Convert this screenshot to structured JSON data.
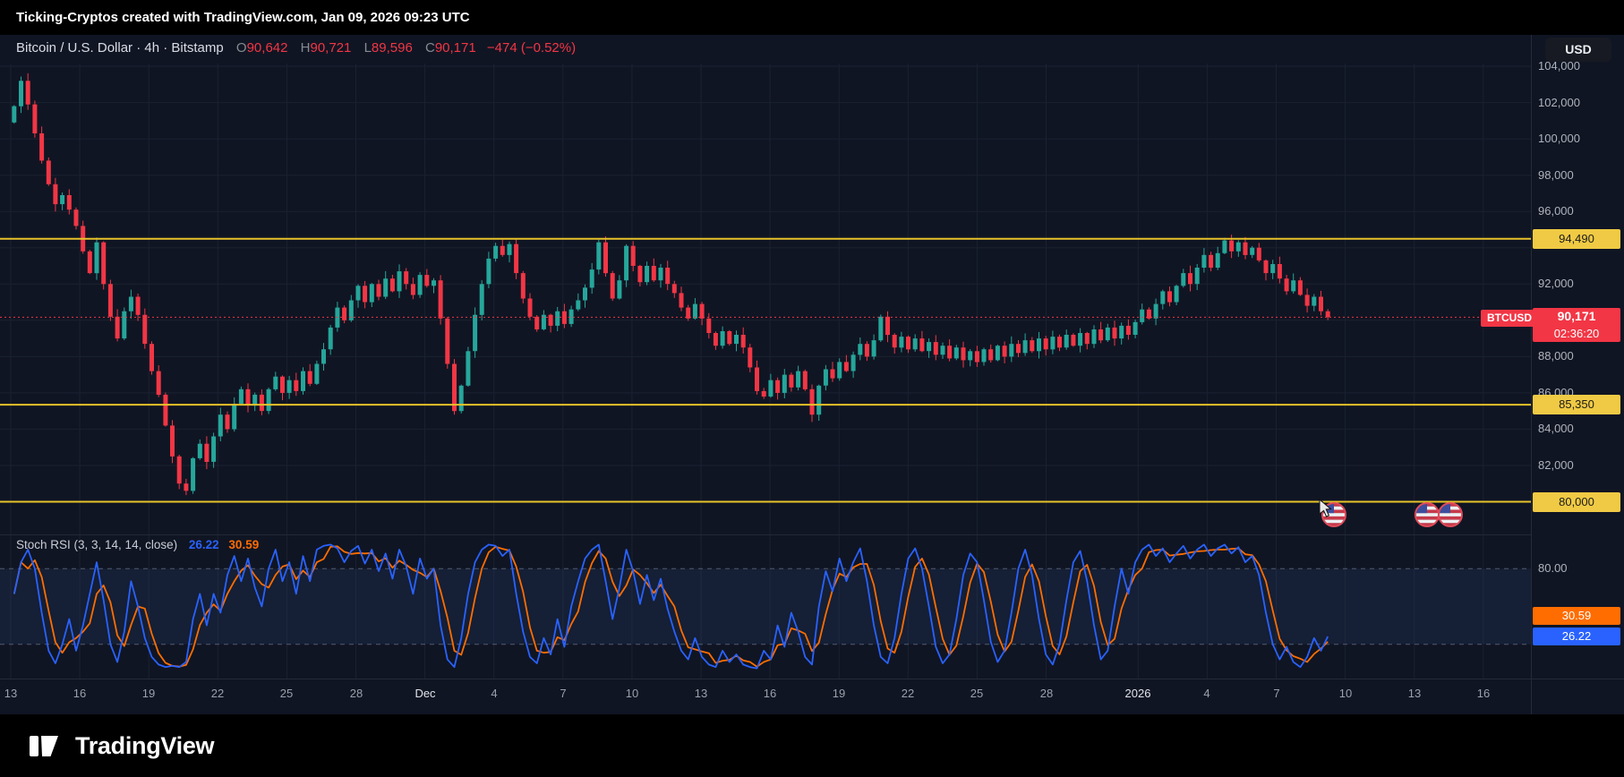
{
  "topbar": {
    "title": "Ticking-Cryptos created with TradingView.com, Jan 09, 2026 09:23 UTC"
  },
  "symbol_header": {
    "title": "Bitcoin / U.S. Dollar · 4h · Bitstamp",
    "o_label": "O",
    "o": "90,642",
    "h_label": "H",
    "h": "90,721",
    "l_label": "L",
    "l": "89,596",
    "c_label": "C",
    "c": "90,171",
    "change": "−474 (−0.52%)"
  },
  "currency_button": "USD",
  "footer": {
    "brand": "TradingView"
  },
  "icons": {
    "logo": "tradingview-logo-icon",
    "flags": "us-flag-event-icon",
    "cursor": "mouse-cursor-icon"
  },
  "colors": {
    "up": "#26a69a",
    "down": "#f23645",
    "grid": "#1a2130",
    "level_yellow": "#e7c229",
    "stoch_k": "#2962ff",
    "stoch_d": "#ff6d00",
    "stoch_band_line": "#687183",
    "stoch_band_fill": "rgba(56,90,160,0.14)"
  },
  "chart_data": [
    {
      "type": "candlestick",
      "symbol": "BTCUSD",
      "title": "Bitcoin / U.S. Dollar",
      "interval": "4h",
      "exchange": "Bitstamp",
      "ohlc_last": {
        "open": 90642,
        "high": 90721,
        "low": 89596,
        "close": 90171,
        "change": -474,
        "change_pct": -0.52
      },
      "last_price": 90171,
      "last_price_label": "90,171",
      "countdown": "02:36:20",
      "ylim": [
        78200,
        104150
      ],
      "y_ticks": [
        80000,
        82000,
        84000,
        86000,
        88000,
        90000,
        92000,
        94000,
        96000,
        98000,
        100000,
        102000,
        104000
      ],
      "levels": [
        {
          "price": 94490,
          "label": "94,490",
          "color": "#e7c229"
        },
        {
          "price": 85350,
          "label": "85,350",
          "color": "#e7c229"
        },
        {
          "price": 80000,
          "label": "80,000",
          "color": "#e7c229"
        }
      ],
      "x_ticks": [
        {
          "label": "13",
          "day": 0,
          "major": false
        },
        {
          "label": "16",
          "day": 3,
          "major": false
        },
        {
          "label": "19",
          "day": 6,
          "major": false
        },
        {
          "label": "22",
          "day": 9,
          "major": false
        },
        {
          "label": "25",
          "day": 12,
          "major": false
        },
        {
          "label": "28",
          "day": 15,
          "major": false
        },
        {
          "label": "Dec",
          "day": 18,
          "major": true
        },
        {
          "label": "4",
          "day": 21,
          "major": false
        },
        {
          "label": "7",
          "day": 24,
          "major": false
        },
        {
          "label": "10",
          "day": 27,
          "major": false
        },
        {
          "label": "13",
          "day": 30,
          "major": false
        },
        {
          "label": "16",
          "day": 33,
          "major": false
        },
        {
          "label": "19",
          "day": 36,
          "major": false
        },
        {
          "label": "22",
          "day": 39,
          "major": false
        },
        {
          "label": "25",
          "day": 42,
          "major": false
        },
        {
          "label": "28",
          "day": 45,
          "major": false
        },
        {
          "label": "2026",
          "day": 49,
          "major": true
        },
        {
          "label": "4",
          "day": 52,
          "major": false
        },
        {
          "label": "7",
          "day": 55,
          "major": false
        },
        {
          "label": "10",
          "day": 58,
          "major": false
        },
        {
          "label": "13",
          "day": 61,
          "major": false
        },
        {
          "label": "16",
          "day": 64,
          "major": false
        }
      ],
      "open_start": 100900,
      "closes": [
        101800,
        103200,
        101900,
        100300,
        98800,
        97500,
        96400,
        96900,
        96100,
        95200,
        93800,
        92600,
        94300,
        92000,
        90200,
        89000,
        90500,
        91300,
        90300,
        88700,
        87200,
        85900,
        84200,
        82500,
        81000,
        80600,
        82400,
        83200,
        82200,
        83600,
        84800,
        84000,
        85400,
        86200,
        85300,
        85900,
        85000,
        86200,
        86900,
        86000,
        86700,
        86100,
        87200,
        86500,
        87600,
        88400,
        89600,
        90700,
        90000,
        91100,
        91900,
        91000,
        92000,
        91300,
        92300,
        91600,
        92700,
        92000,
        91400,
        92500,
        91900,
        92200,
        90100,
        87600,
        85000,
        86400,
        88300,
        90300,
        92000,
        93400,
        94100,
        93600,
        94200,
        92600,
        91200,
        90200,
        89500,
        90300,
        89700,
        90500,
        89800,
        90600,
        91100,
        91800,
        92800,
        94300,
        92600,
        91200,
        92200,
        94100,
        93000,
        92100,
        93000,
        92200,
        92900,
        92000,
        91500,
        90700,
        90100,
        90900,
        90100,
        89300,
        88600,
        89400,
        88700,
        89200,
        88500,
        87400,
        86100,
        85800,
        86700,
        86000,
        87000,
        86300,
        87200,
        86200,
        84800,
        86400,
        87300,
        86800,
        87700,
        87200,
        88100,
        88700,
        88000,
        88900,
        90200,
        89200,
        88500,
        89100,
        88400,
        89000,
        88300,
        88800,
        88100,
        88600,
        87900,
        88500,
        87800,
        88300,
        87700,
        88400,
        87800,
        88600,
        88000,
        88700,
        88200,
        88900,
        88300,
        89000,
        88400,
        89100,
        88500,
        89200,
        88600,
        89300,
        88700,
        89500,
        88900,
        89600,
        89000,
        89700,
        89200,
        89900,
        90600,
        90100,
        90900,
        91600,
        91000,
        91900,
        92600,
        92000,
        92900,
        93600,
        92900,
        93700,
        94400,
        93800,
        94300,
        93600,
        94000,
        93300,
        92600,
        93100,
        92300,
        91600,
        92200,
        91400,
        90800,
        91300,
        90500,
        90171
      ]
    },
    {
      "type": "line",
      "title": "Stoch RSI (3, 3, 14, 14, close)",
      "k_last": 26.22,
      "d_last": 30.59,
      "k_label": "26.22",
      "d_label": "30.59",
      "band_label": "80.00",
      "ylim": [
        0,
        100
      ],
      "bands": [
        20,
        80
      ],
      "k": [
        60,
        85,
        95,
        80,
        45,
        15,
        5,
        20,
        40,
        15,
        35,
        60,
        85,
        55,
        20,
        6,
        30,
        70,
        50,
        25,
        10,
        4,
        2,
        3,
        2,
        6,
        40,
        60,
        35,
        60,
        45,
        75,
        90,
        70,
        88,
        65,
        50,
        80,
        95,
        70,
        85,
        60,
        90,
        70,
        95,
        98,
        99,
        96,
        85,
        94,
        98,
        84,
        95,
        78,
        92,
        72,
        95,
        82,
        60,
        88,
        72,
        80,
        35,
        8,
        2,
        25,
        60,
        85,
        95,
        99,
        98,
        90,
        95,
        60,
        30,
        10,
        5,
        25,
        12,
        40,
        18,
        50,
        70,
        88,
        95,
        99,
        70,
        40,
        65,
        95,
        78,
        52,
        75,
        55,
        72,
        48,
        30,
        15,
        8,
        25,
        10,
        4,
        2,
        15,
        6,
        12,
        4,
        2,
        1,
        15,
        8,
        35,
        18,
        45,
        30,
        10,
        4,
        50,
        78,
        62,
        88,
        70,
        85,
        96,
        70,
        35,
        10,
        5,
        25,
        60,
        88,
        96,
        80,
        50,
        18,
        5,
        12,
        40,
        75,
        92,
        85,
        55,
        22,
        6,
        15,
        45,
        80,
        95,
        75,
        40,
        12,
        4,
        20,
        55,
        85,
        94,
        70,
        35,
        8,
        15,
        50,
        80,
        60,
        85,
        95,
        99,
        90,
        96,
        85,
        92,
        98,
        88,
        95,
        99,
        90,
        96,
        99,
        92,
        97,
        85,
        90,
        75,
        45,
        20,
        8,
        18,
        6,
        2,
        10,
        25,
        15,
        26.22
      ]
    }
  ]
}
